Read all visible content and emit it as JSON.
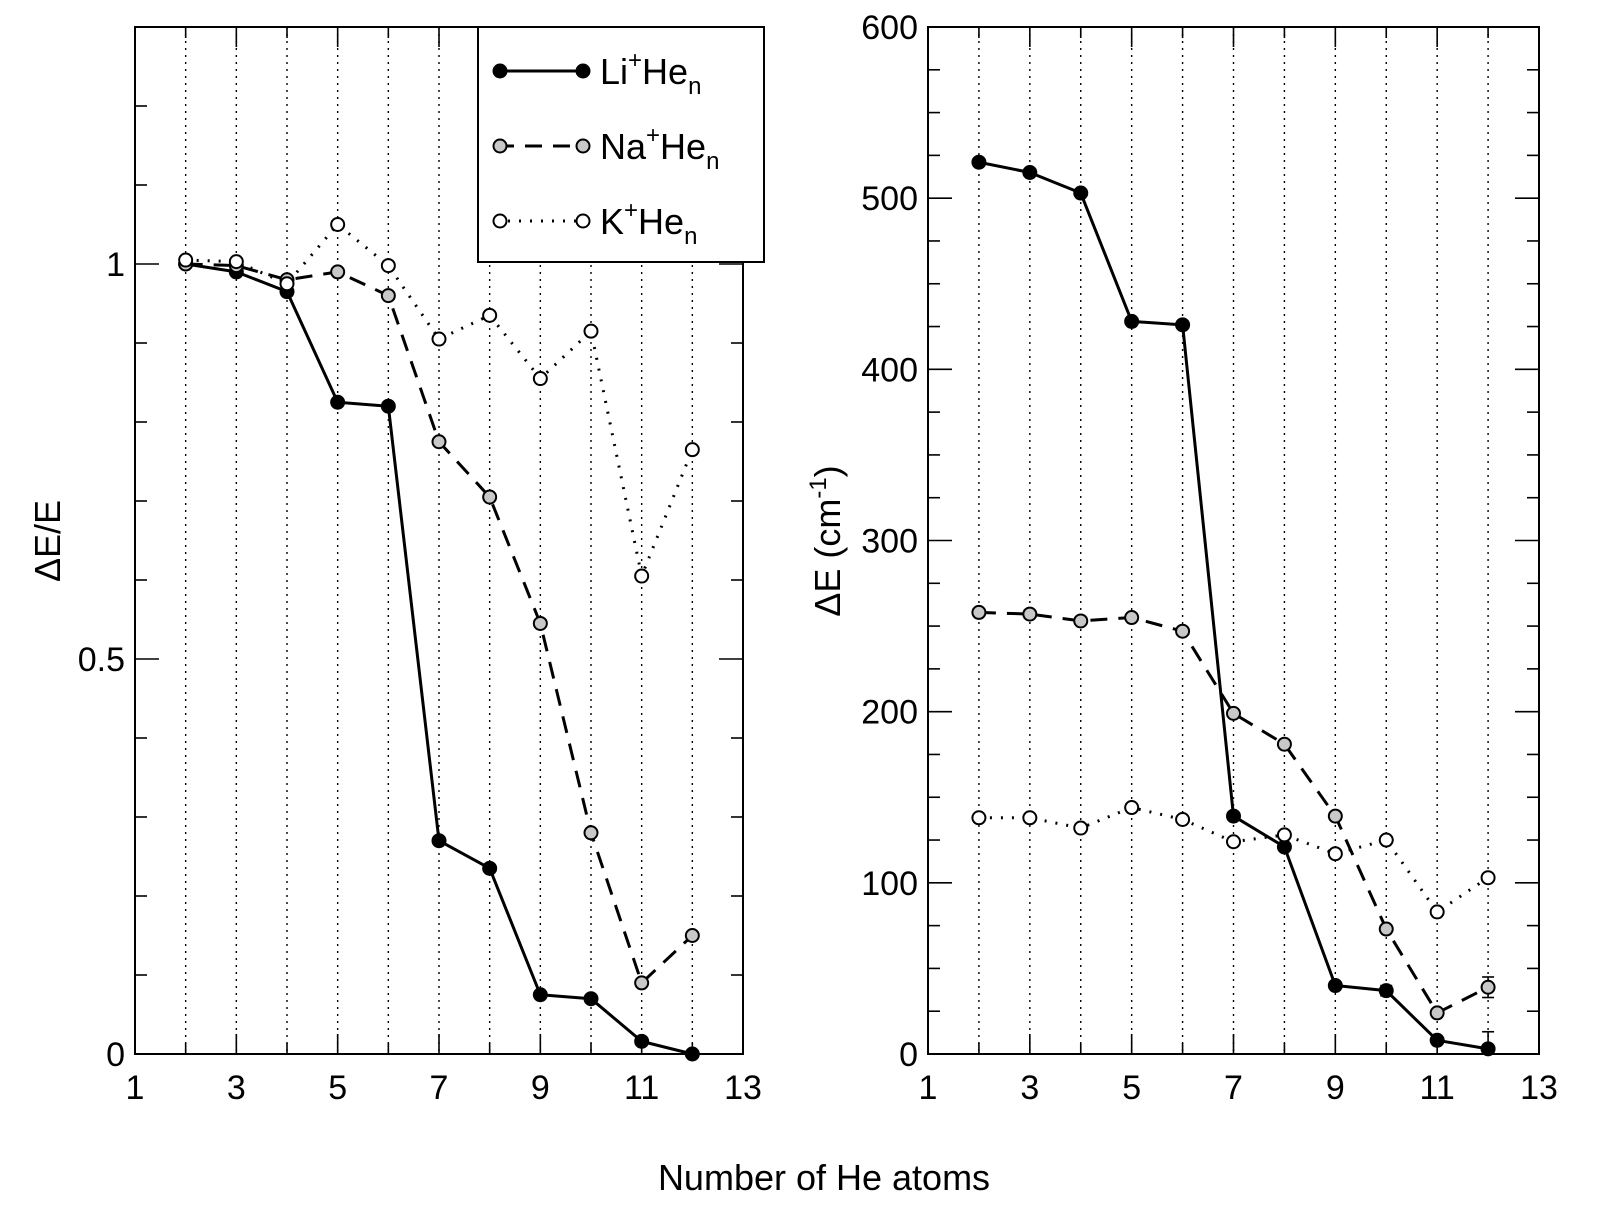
{
  "xlabel": "Number of He atoms",
  "legend": {
    "entries": [
      {
        "base": "Li",
        "sup": "+",
        "mid": "He",
        "sub": "n"
      },
      {
        "base": "Na",
        "sup": "+",
        "mid": "He",
        "sub": "n"
      },
      {
        "base": "K",
        "sup": "+",
        "mid": "He",
        "sub": "n"
      }
    ]
  },
  "chart_data": [
    {
      "type": "line",
      "title": "",
      "xlabel": "Number of He atoms",
      "ylabel": "ΔE/E",
      "xlim": [
        1,
        13
      ],
      "ylim": [
        0,
        1.3
      ],
      "xticks": [
        1,
        3,
        5,
        7,
        9,
        11,
        13
      ],
      "yticks": [
        0,
        0.5,
        1
      ],
      "ytick_labels": [
        "0",
        "0.5",
        "1"
      ],
      "vertical_grid": "dotted at each integer from 2 to 12",
      "legend_position": "top-right",
      "x": [
        2,
        3,
        4,
        5,
        6,
        7,
        8,
        9,
        10,
        11,
        12
      ],
      "series": [
        {
          "name": "Li+Hen",
          "values": [
            1.0,
            0.99,
            0.965,
            0.825,
            0.82,
            0.27,
            0.235,
            0.075,
            0.07,
            0.016,
            0.0
          ]
        },
        {
          "name": "Na+Hen",
          "values": [
            1.0,
            0.998,
            0.98,
            0.99,
            0.96,
            0.775,
            0.705,
            0.545,
            0.28,
            0.09,
            0.15
          ]
        },
        {
          "name": "K+Hen",
          "values": [
            1.005,
            1.003,
            0.975,
            1.05,
            0.998,
            0.905,
            0.935,
            0.855,
            0.915,
            0.605,
            0.765
          ]
        }
      ]
    },
    {
      "type": "line",
      "title": "",
      "xlabel": "Number of He atoms",
      "ylabel": "ΔE (cm⁻¹)",
      "ylabel_parts": {
        "main": "ΔE (cm",
        "sup": "-1",
        "close": ")"
      },
      "xlim": [
        1,
        13
      ],
      "ylim": [
        0,
        600
      ],
      "xticks": [
        1,
        3,
        5,
        7,
        9,
        11,
        13
      ],
      "yticks": [
        0,
        100,
        200,
        300,
        400,
        500,
        600
      ],
      "vertical_grid": "dotted at each integer from 2 to 12",
      "x": [
        2,
        3,
        4,
        5,
        6,
        7,
        8,
        9,
        10,
        11,
        12
      ],
      "series": [
        {
          "name": "Li+Hen",
          "values": [
            521,
            515,
            503,
            428,
            426,
            139,
            121,
            40,
            37,
            8,
            3
          ],
          "errors": [
            0,
            0,
            0,
            0,
            0,
            0,
            0,
            2,
            3,
            2,
            10
          ]
        },
        {
          "name": "Na+Hen",
          "values": [
            258,
            257,
            253,
            255,
            247,
            199,
            181,
            139,
            73,
            24,
            39
          ],
          "errors": [
            0,
            0,
            0,
            0,
            0,
            0,
            0,
            0,
            0,
            0,
            6
          ]
        },
        {
          "name": "K+Hen",
          "values": [
            138,
            138,
            132,
            144,
            137,
            124,
            128,
            117,
            125,
            83,
            103
          ],
          "errors": [
            0,
            0,
            0,
            0,
            0,
            0,
            0,
            0,
            0,
            0,
            0
          ]
        }
      ]
    }
  ]
}
